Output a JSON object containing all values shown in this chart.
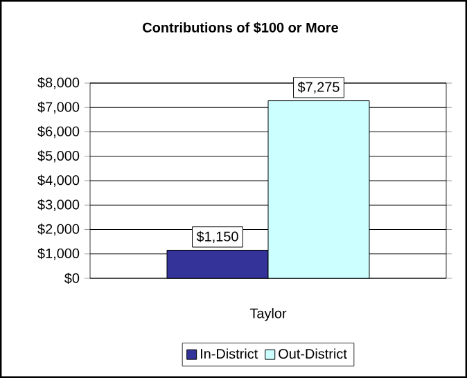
{
  "chart_data": {
    "type": "bar",
    "title": "Contributions of $100 or More",
    "categories": [
      "Taylor"
    ],
    "series": [
      {
        "name": "In-District",
        "color": "#333399",
        "values": [
          1150
        ],
        "value_labels": [
          "$1,150"
        ]
      },
      {
        "name": "Out-District",
        "color": "#ccffff",
        "values": [
          7275
        ],
        "value_labels": [
          "$7,275"
        ]
      }
    ],
    "ylim": [
      0,
      8000
    ],
    "yticks": [
      {
        "value": 0,
        "label": "$0"
      },
      {
        "value": 1000,
        "label": "$1,000"
      },
      {
        "value": 2000,
        "label": "$2,000"
      },
      {
        "value": 3000,
        "label": "$3,000"
      },
      {
        "value": 4000,
        "label": "$4,000"
      },
      {
        "value": 5000,
        "label": "$5,000"
      },
      {
        "value": 6000,
        "label": "$6,000"
      },
      {
        "value": 7000,
        "label": "$7,000"
      },
      {
        "value": 8000,
        "label": "$8,000"
      }
    ],
    "grid": "y",
    "legend": "bottom"
  }
}
